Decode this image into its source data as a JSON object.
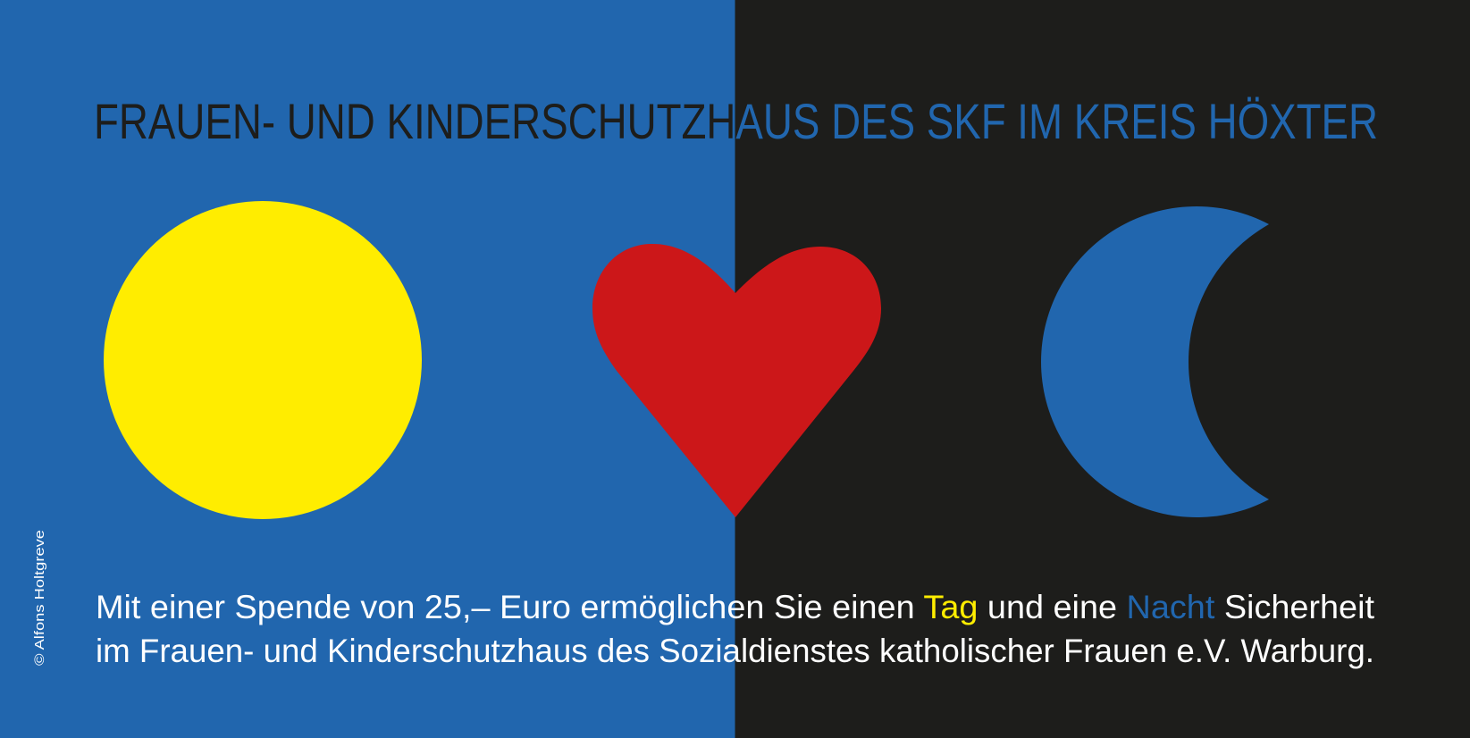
{
  "colors": {
    "left_background": "#2166ae",
    "right_background": "#1d1d1b",
    "sun": "#ffed00",
    "heart": "#cc1719",
    "moon": "#2166ae",
    "body_text": "#ffffff",
    "highlight_day": "#ffed00",
    "highlight_night": "#2166ae"
  },
  "title": "FRAUEN- UND KINDERSCHUTZHAUS DES SKF IM KREIS HÖXTER",
  "body": {
    "line1": {
      "before": "Mit einer Spende von 25,– Euro ermöglichen Sie einen ",
      "day": "Tag",
      "middle": " und eine ",
      "night": "Nacht",
      "after": " Sicherheit"
    },
    "line2": "im Frauen- und Kinderschutzhaus des Sozialdienstes katholischer Frauen e.V. Warburg."
  },
  "credit": "© Alfons Holtgreve",
  "icons": [
    "sun-circle",
    "heart",
    "crescent-moon"
  ]
}
